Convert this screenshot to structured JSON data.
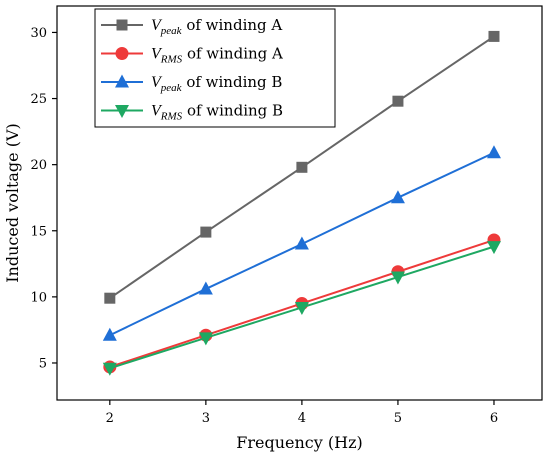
{
  "chart_data": {
    "type": "line",
    "xlabel": "Frequency (Hz)",
    "ylabel": "Induced voltage (V)",
    "x": [
      2,
      3,
      4,
      5,
      6
    ],
    "xlim": [
      1.45,
      6.5
    ],
    "ylim": [
      2.2,
      32.0
    ],
    "xticks": [
      2,
      3,
      4,
      5,
      6
    ],
    "yticks": [
      5,
      10,
      15,
      20,
      25,
      30
    ],
    "grid": false,
    "legend_position": "top-left",
    "series": [
      {
        "name": "V_peak of winding A",
        "name_parts": {
          "v": "V",
          "sub": "peak",
          "rest": " of winding A"
        },
        "values": [
          9.9,
          14.9,
          19.8,
          24.8,
          29.7
        ],
        "color": "#666666",
        "marker": "square"
      },
      {
        "name": "V_RMS of winding A",
        "name_parts": {
          "v": "V",
          "sub": "RMS",
          "rest": " of winding A"
        },
        "values": [
          4.7,
          7.1,
          9.5,
          11.9,
          14.3
        ],
        "color": "#ee3a3a",
        "marker": "circle"
      },
      {
        "name": "V_peak of winding B",
        "name_parts": {
          "v": "V",
          "sub": "peak",
          "rest": " of winding B"
        },
        "values": [
          7.1,
          10.6,
          14.0,
          17.5,
          20.9
        ],
        "color": "#1f6fd6",
        "marker": "triangle-up"
      },
      {
        "name": "V_RMS of winding B",
        "name_parts": {
          "v": "V",
          "sub": "RMS",
          "rest": " of winding B"
        },
        "values": [
          4.6,
          6.9,
          9.2,
          11.5,
          13.8
        ],
        "color": "#1ea862",
        "marker": "triangle-down"
      }
    ]
  }
}
